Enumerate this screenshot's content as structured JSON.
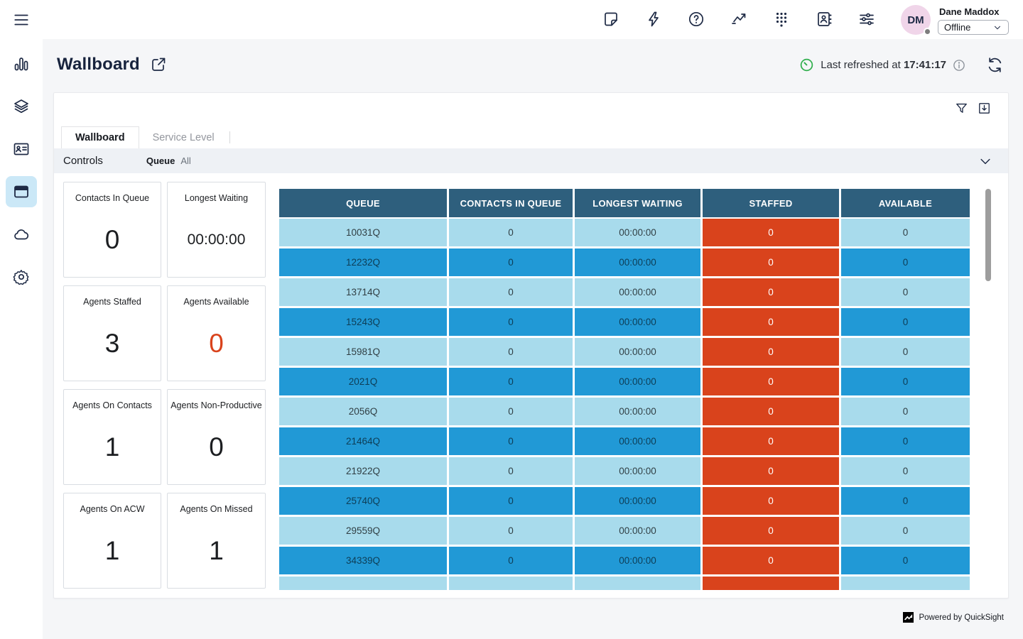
{
  "header": {
    "icons": [
      "notes-icon",
      "quick-connects-icon",
      "help-icon",
      "metrics-icon",
      "dialpad-icon",
      "directory-icon",
      "settings-sliders-icon"
    ],
    "user": {
      "initials": "DM",
      "name": "Dane Maddox",
      "status": "Offline"
    }
  },
  "sidebar": {
    "items": [
      "analytics",
      "layers",
      "contact-card",
      "wallboard",
      "cloud",
      "settings"
    ],
    "active_item": "wallboard"
  },
  "page": {
    "title": "Wallboard",
    "last_refreshed_label": "Last refreshed at",
    "last_refreshed_time": "17:41:17"
  },
  "tabs": [
    {
      "label": "Wallboard",
      "active": true
    },
    {
      "label": "Service Level",
      "active": false
    }
  ],
  "controls": {
    "label": "Controls",
    "filter_name": "Queue",
    "filter_value": "All"
  },
  "kpis": [
    {
      "label": "Contacts In Queue",
      "value": "0"
    },
    {
      "label": "Longest Waiting",
      "value": "00:00:00"
    },
    {
      "label": "Agents Staffed",
      "value": "3"
    },
    {
      "label": "Agents Available",
      "value": "0",
      "accent": true
    },
    {
      "label": "Agents On Contacts",
      "value": "1"
    },
    {
      "label": "Agents Non-Productive",
      "value": "0"
    },
    {
      "label": "Agents On ACW",
      "value": "1"
    },
    {
      "label": "Agents On Missed",
      "value": "1"
    }
  ],
  "table": {
    "columns": [
      "QUEUE",
      "CONTACTS IN QUEUE",
      "LONGEST WAITING",
      "STAFFED",
      "AVAILABLE"
    ],
    "rows": [
      [
        "10031Q",
        "0",
        "00:00:00",
        "0",
        "0"
      ],
      [
        "12232Q",
        "0",
        "00:00:00",
        "0",
        "0"
      ],
      [
        "13714Q",
        "0",
        "00:00:00",
        "0",
        "0"
      ],
      [
        "15243Q",
        "0",
        "00:00:00",
        "0",
        "0"
      ],
      [
        "15981Q",
        "0",
        "00:00:00",
        "0",
        "0"
      ],
      [
        "2021Q",
        "0",
        "00:00:00",
        "0",
        "0"
      ],
      [
        "2056Q",
        "0",
        "00:00:00",
        "0",
        "0"
      ],
      [
        "21464Q",
        "0",
        "00:00:00",
        "0",
        "0"
      ],
      [
        "21922Q",
        "0",
        "00:00:00",
        "0",
        "0"
      ],
      [
        "25740Q",
        "0",
        "00:00:00",
        "0",
        "0"
      ],
      [
        "29559Q",
        "0",
        "00:00:00",
        "0",
        "0"
      ],
      [
        "34339Q",
        "0",
        "00:00:00",
        "0",
        "0"
      ],
      [
        "",
        "",
        "",
        "",
        ""
      ]
    ]
  },
  "footer": {
    "powered_by": "Powered by QuickSight"
  },
  "colors": {
    "accent_orange": "#d9431c",
    "table_header": "#2e5f7d",
    "row_light": "#a8dbec",
    "row_blue": "#2199d6",
    "active_nav_bg": "#cbe8f7",
    "refresh_green": "#2fae4c"
  }
}
